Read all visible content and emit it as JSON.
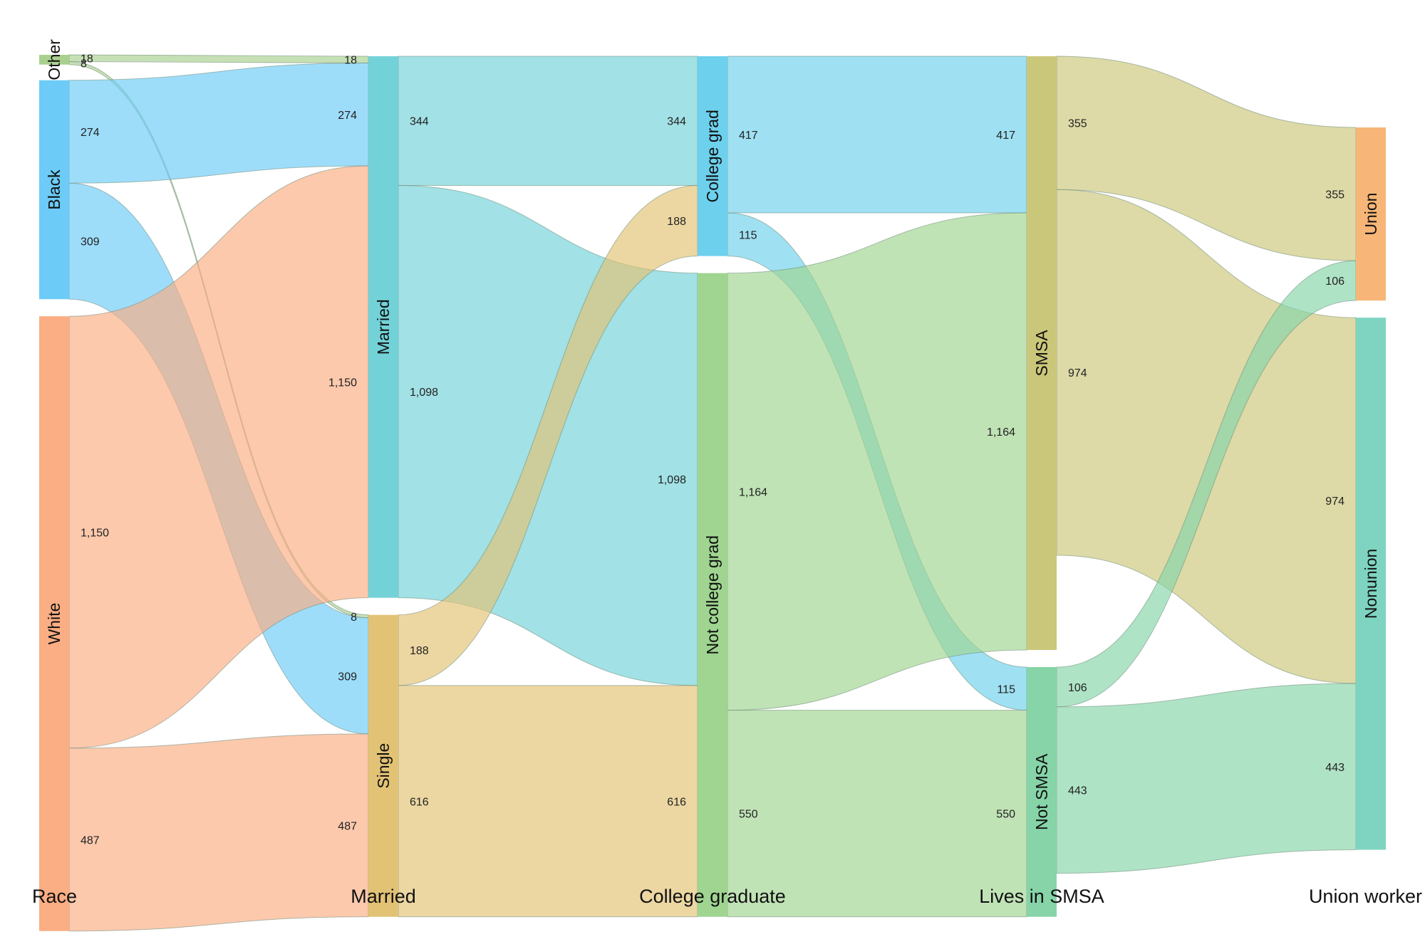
{
  "chart_data": {
    "type": "sankey",
    "stages": [
      {
        "id": "race",
        "label": "Race",
        "nodes": [
          "Other",
          "Black",
          "White"
        ]
      },
      {
        "id": "married",
        "label": "Married",
        "nodes": [
          "Married",
          "Single"
        ]
      },
      {
        "id": "college",
        "label": "College graduate",
        "nodes": [
          "College grad",
          "Not college grad"
        ]
      },
      {
        "id": "smsa",
        "label": "Lives in SMSA",
        "nodes": [
          "SMSA",
          "Not SMSA"
        ]
      },
      {
        "id": "union",
        "label": "Union worker",
        "nodes": [
          "Union",
          "Nonunion"
        ]
      }
    ],
    "node_colors": {
      "Other": "#a9d08e",
      "Black": "#6ccbf7",
      "White": "#fbad83",
      "Married": "#72d2d8",
      "Single": "#e2c274",
      "College grad": "#6dd0ec",
      "Not college grad": "#9fd590",
      "SMSA": "#cbc77a",
      "Not SMSA": "#86d4a8",
      "Union": "#f7b677",
      "Nonunion": "#7ed4c0"
    },
    "flows": [
      {
        "source": "Other",
        "target": "Married",
        "value": 18,
        "src_label": "18",
        "tgt_label": "18"
      },
      {
        "source": "Other",
        "target": "Single",
        "value": 8,
        "src_label": "8",
        "tgt_label": "8"
      },
      {
        "source": "Black",
        "target": "Married",
        "value": 274,
        "src_label": "274",
        "tgt_label": "274"
      },
      {
        "source": "Black",
        "target": "Single",
        "value": 309,
        "src_label": "309",
        "tgt_label": "309"
      },
      {
        "source": "White",
        "target": "Married",
        "value": 1150,
        "src_label": "1,150",
        "tgt_label": "1,150"
      },
      {
        "source": "White",
        "target": "Single",
        "value": 487,
        "src_label": "487",
        "tgt_label": "487"
      },
      {
        "source": "Married",
        "target": "College grad",
        "value": 344,
        "src_label": "344",
        "tgt_label": "344"
      },
      {
        "source": "Married",
        "target": "Not college grad",
        "value": 1098,
        "src_label": "1,098",
        "tgt_label": "1,098"
      },
      {
        "source": "Single",
        "target": "College grad",
        "value": 188,
        "src_label": "188",
        "tgt_label": "188"
      },
      {
        "source": "Single",
        "target": "Not college grad",
        "value": 616,
        "src_label": "616",
        "tgt_label": "616"
      },
      {
        "source": "College grad",
        "target": "SMSA",
        "value": 417,
        "src_label": "417",
        "tgt_label": "417"
      },
      {
        "source": "College grad",
        "target": "Not SMSA",
        "value": 115,
        "src_label": "115",
        "tgt_label": "115"
      },
      {
        "source": "Not college grad",
        "target": "SMSA",
        "value": 1164,
        "src_label": "1,164",
        "tgt_label": "1,164"
      },
      {
        "source": "Not college grad",
        "target": "Not SMSA",
        "value": 550,
        "src_label": "550",
        "tgt_label": "550"
      },
      {
        "source": "SMSA",
        "target": "Union",
        "value": 355,
        "src_label": "355",
        "tgt_label": "355"
      },
      {
        "source": "SMSA",
        "target": "Nonunion",
        "value": 974,
        "src_label": "974",
        "tgt_label": "974"
      },
      {
        "source": "Not SMSA",
        "target": "Union",
        "value": 106,
        "src_label": "106",
        "tgt_label": "106"
      },
      {
        "source": "Not SMSA",
        "target": "Nonunion",
        "value": 443,
        "src_label": "443",
        "tgt_label": "443"
      }
    ]
  }
}
